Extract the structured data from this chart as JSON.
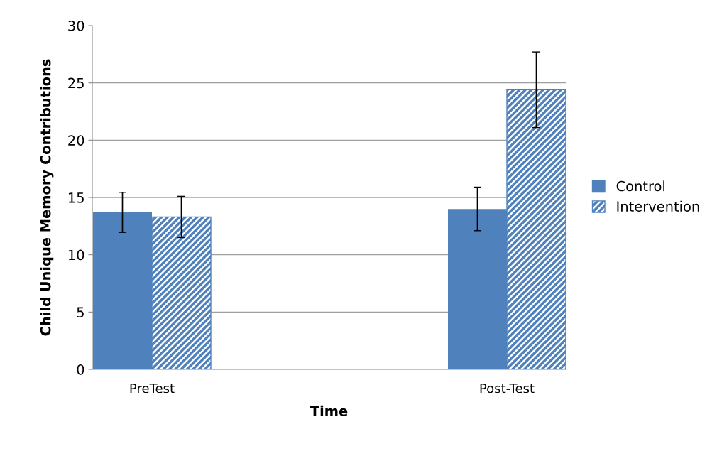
{
  "chart_data": {
    "type": "bar",
    "xlabel": "Time",
    "ylabel": "Child Unique Memory Contributions",
    "categories": [
      "PreTest",
      "Post-Test"
    ],
    "series": [
      {
        "name": "Control",
        "color": "#4f81bd",
        "values": [
          13.7,
          14.0
        ],
        "errors": [
          1.75,
          1.9
        ]
      },
      {
        "name": "Intervention",
        "color": "#4f81bd",
        "values": [
          13.3,
          24.4
        ],
        "errors": [
          1.8,
          3.3
        ]
      }
    ],
    "ylim": [
      0,
      30
    ],
    "yticks": [
      0,
      5,
      10,
      15,
      20,
      25,
      30
    ],
    "grid": "y",
    "legend": "right"
  }
}
